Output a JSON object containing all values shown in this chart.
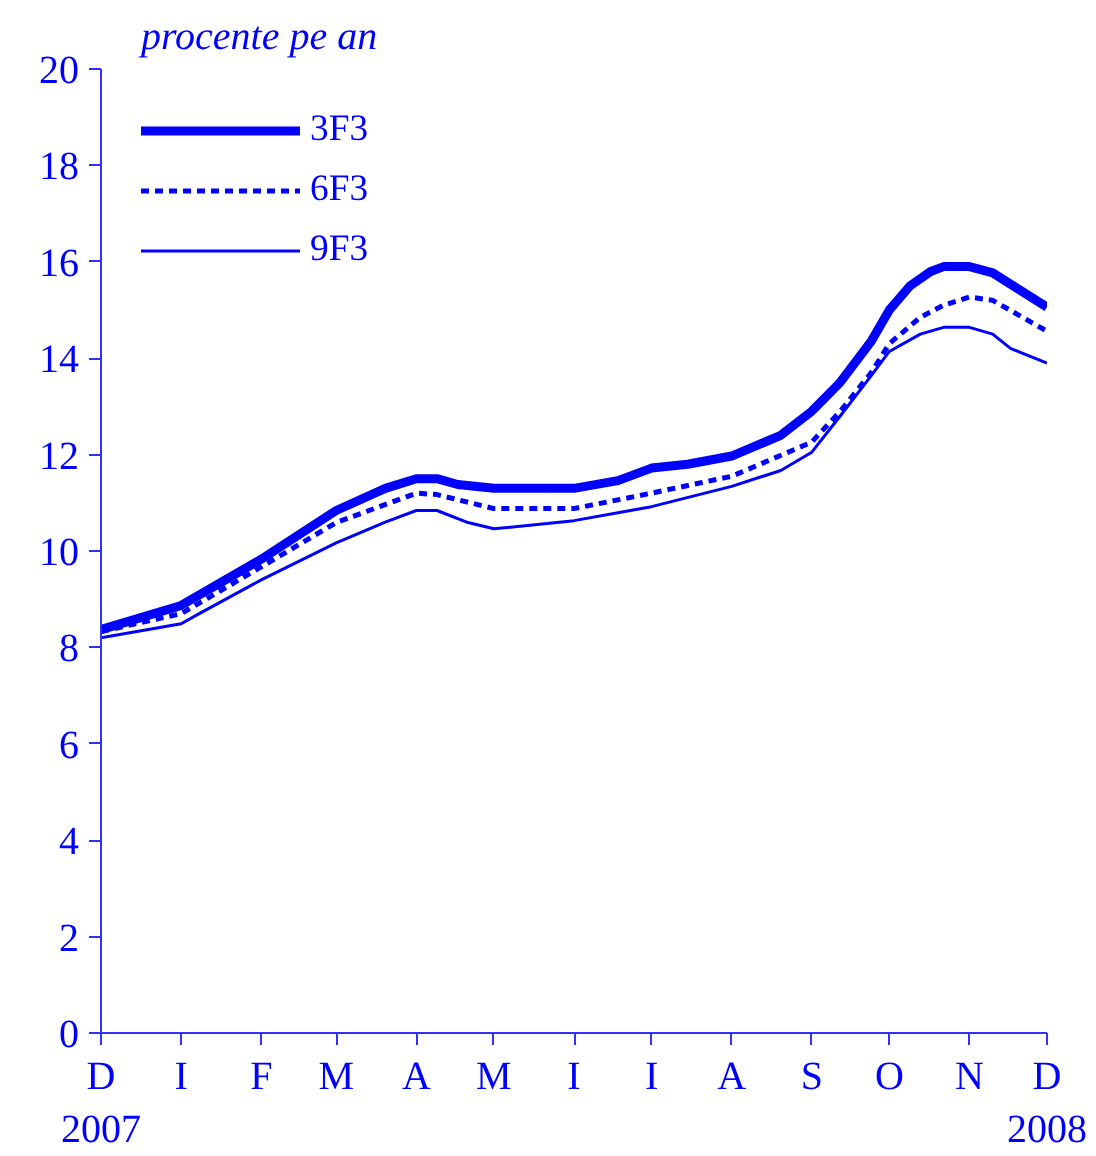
{
  "chart_data": {
    "type": "line",
    "subtitle": "procente pe an",
    "xlim": [
      "2007-12-01",
      "2008-12-01"
    ],
    "xticks": [
      {
        "value": "2007-12-01",
        "label": "D\n2007"
      },
      {
        "value": "2008-01-01",
        "label": "I"
      },
      {
        "value": "2008-02-01",
        "label": "F"
      },
      {
        "value": "2008-03-01",
        "label": "M"
      },
      {
        "value": "2008-04-01",
        "label": "A"
      },
      {
        "value": "2008-05-01",
        "label": "M"
      },
      {
        "value": "2008-06-01",
        "label": "I"
      },
      {
        "value": "2008-07-01",
        "label": "I"
      },
      {
        "value": "2008-08-01",
        "label": "A"
      },
      {
        "value": "2008-09-01",
        "label": "S"
      },
      {
        "value": "2008-10-01",
        "label": "O"
      },
      {
        "value": "2008-11-01",
        "label": "N"
      },
      {
        "value": "2008-12-01",
        "label": "D\n2008"
      }
    ],
    "ylim": [
      0,
      20
    ],
    "yticks": [
      0,
      2,
      4,
      6,
      8,
      10,
      12,
      14,
      16,
      18,
      20
    ],
    "grid": false,
    "legend": "top left",
    "marker": "none",
    "series": [
      {
        "name": "3F3",
        "color": "#0000ff",
        "line_style": "solid",
        "x": [
          "2007-12-01",
          "2008-01-01",
          "2008-02-01",
          "2008-03-01",
          "2008-03-20",
          "2008-04-01",
          "2008-04-09",
          "2008-04-17",
          "2008-05-01",
          "2008-06-01",
          "2008-06-18",
          "2008-07-01",
          "2008-07-15",
          "2008-08-01",
          "2008-08-20",
          "2008-09-01",
          "2008-09-12",
          "2008-09-24",
          "2008-10-01",
          "2008-10-09",
          "2008-10-17",
          "2008-10-22",
          "2008-11-01",
          "2008-11-10",
          "2008-12-01"
        ],
        "values": [
          8.37,
          8.87,
          9.83,
          10.84,
          11.3,
          11.5,
          11.5,
          11.38,
          11.3,
          11.3,
          11.46,
          11.72,
          11.8,
          11.97,
          12.4,
          12.9,
          13.5,
          14.35,
          15.0,
          15.5,
          15.8,
          15.9,
          15.9,
          15.77,
          15.06
        ]
      },
      {
        "name": "6F3",
        "color": "#0000ff",
        "line_style": "dashed",
        "x": [
          "2007-12-01",
          "2008-01-01",
          "2008-02-01",
          "2008-03-01",
          "2008-04-01",
          "2008-04-09",
          "2008-05-01",
          "2008-06-01",
          "2008-07-01",
          "2008-08-01",
          "2008-09-01",
          "2008-09-12",
          "2008-09-24",
          "2008-10-01",
          "2008-10-13",
          "2008-10-22",
          "2008-11-01",
          "2008-11-10",
          "2008-12-01"
        ],
        "values": [
          8.33,
          8.7,
          9.67,
          10.59,
          11.2,
          11.17,
          10.88,
          10.88,
          11.2,
          11.55,
          12.26,
          12.9,
          13.7,
          14.3,
          14.85,
          15.1,
          15.27,
          15.2,
          14.56
        ]
      },
      {
        "name": "9F3",
        "color": "#0000ff",
        "line_style": "solid",
        "x": [
          "2007-12-01",
          "2008-01-01",
          "2008-01-08",
          "2008-02-01",
          "2008-03-01",
          "2008-03-20",
          "2008-04-01",
          "2008-04-09",
          "2008-04-21",
          "2008-05-01",
          "2008-06-01",
          "2008-07-01",
          "2008-08-01",
          "2008-08-20",
          "2008-09-01",
          "2008-09-12",
          "2008-09-24",
          "2008-10-01",
          "2008-10-13",
          "2008-10-22",
          "2008-11-01",
          "2008-11-10",
          "2008-11-17",
          "2008-12-01"
        ],
        "values": [
          8.2,
          8.49,
          8.7,
          9.4,
          10.17,
          10.6,
          10.84,
          10.84,
          10.59,
          10.46,
          10.63,
          10.92,
          11.34,
          11.67,
          12.05,
          12.8,
          13.64,
          14.14,
          14.5,
          14.64,
          14.64,
          14.5,
          14.2,
          13.9
        ]
      }
    ]
  }
}
